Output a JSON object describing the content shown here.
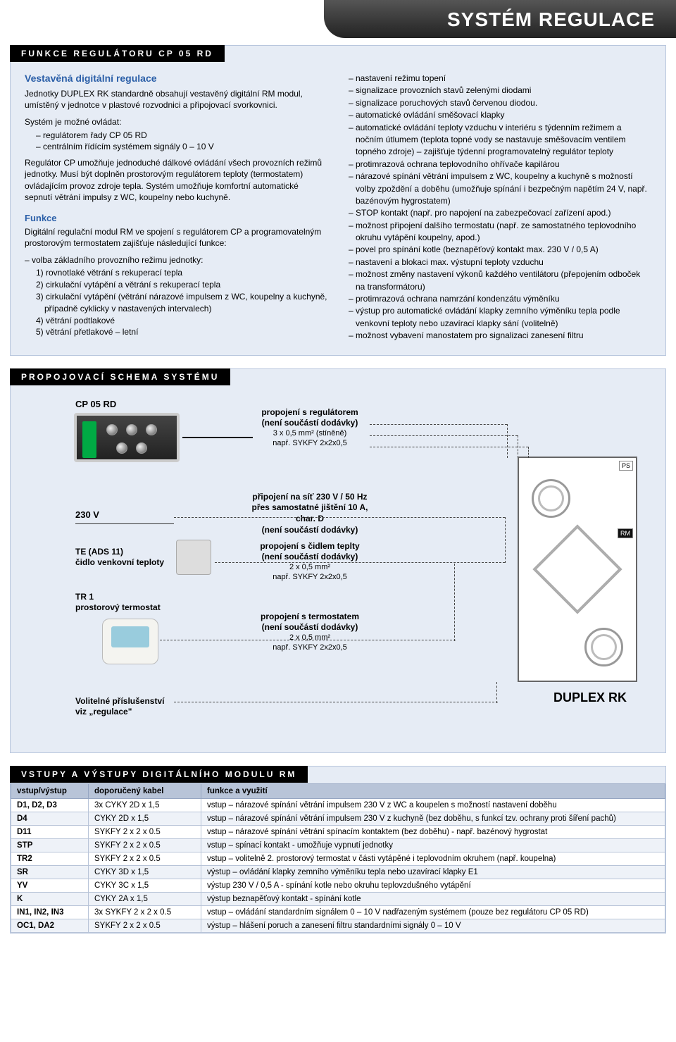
{
  "page_title": "SYSTÉM REGULACE",
  "section1": {
    "tag": "FUNKCE REGULÁTORU CP 05 RD",
    "heading": "Vestavěná digitální regulace",
    "intro": "Jednotky DUPLEX RK standardně obsahují vestavěný digitální RM modul, umístěný v jednotce v plastové rozvodnici a připojovací svorkovnici.",
    "control_intro": "Systém je možné ovládat:",
    "control_items": [
      "– regulátorem řady CP 05 RD",
      "– centrálním řídícím systémem signály 0 – 10 V"
    ],
    "para2": "Regulátor CP umožňuje jednoduché dálkové ovládání všech provozních režimů jednotky. Musí být doplněn prostorovým regulátorem teploty (termostatem) ovládajícím provoz zdroje tepla. Systém umožňuje komfortní automatické sepnutí větrání impulsy z WC, koupelny nebo kuchyně.",
    "funkce_head": "Funkce",
    "funkce_intro": "Digitální regulační modul RM ve spojení s regulátorem CP a programovatelným prostorovým termostatem zajišťuje následující funkce:",
    "mode_intro": "– volba základního provozního režimu jednotky:",
    "modes": [
      "1) rovnotlaké větrání s rekuperací tepla",
      "2) cirkulační vytápění a větrání s rekuperací tepla",
      "3) cirkulační vytápění (větrání nárazové impulsem z WC, koupelny a kuchyně, případně cyklicky v nastavených intervalech)",
      "4) větrání podtlakové",
      "5) větrání přetlakové – letní"
    ],
    "right_bullets": [
      "– nastavení režimu topení",
      "– signalizace provozních stavů zelenými diodami",
      "– signalizace poruchových stavů červenou diodou.",
      "– automatické ovládání směšovací klapky",
      "– automatické ovládání teploty vzduchu v interiéru s týdenním režimem a nočním útlumem (teplota topné vody se nastavuje směšovacím ventilem topného zdroje) – zajišťuje týdenní programovatelný regulátor teploty",
      "– protimrazová ochrana teplovodního ohřívače kapilárou",
      "– nárazové spínání větrání impulsem z WC, koupelny a kuchyně s možností volby zpoždění a doběhu (umožňuje spínání i bezpečným napětím 24 V, např. bazénovým hygrostatem)",
      "– STOP kontakt (např. pro napojení na zabezpečovací zařízení apod.)",
      "– možnost připojení dalšího termostatu (např. ze samostatného teplovodního okruhu vytápění koupelny, apod.)",
      "– povel pro spínání kotle (beznapěťový kontakt max. 230 V / 0,5 A)",
      "– nastavení a blokaci max. výstupní teploty vzduchu",
      "– možnost změny nastavení výkonů každého ventilátoru (přepojením odboček na transformátoru)",
      "– protimrazová ochrana namrzání kondenzátu výměníku",
      "– výstup pro automatické ovládání klapky zemního výměníku tepla podle venkovní teploty nebo uzavírací klapky sání (volitelně)",
      "– možnost vybavení manostatem pro signalizaci zanesení filtru"
    ]
  },
  "section2": {
    "tag": "PROPOJOVACÍ SCHEMA SYSTÉMU",
    "controller_label": "CP 05 RD",
    "conn_reg_1": "propojení s regulátorem",
    "conn_reg_2": "(není součástí dodávky)",
    "conn_reg_3": "3 x 0,5 mm² (stíněně)",
    "conn_reg_4": "např. SYKFY 2x2x0,5",
    "v230": "230 V",
    "conn_230_1": "připojení na síť 230 V / 50 Hz",
    "conn_230_2": "přes samostatné jištění 10 A, char. D",
    "conn_230_3": "(není součástí dodávky)",
    "te_label1": "TE (ADS 11)",
    "te_label2": "čidlo venkovní teploty",
    "conn_te_1": "propojení s čidlem teplty",
    "conn_te_2": "(není součástí dodávky)",
    "conn_te_3": "2 x 0,5 mm²",
    "conn_te_4": "např. SYKFY 2x2x0,5",
    "tr_label1": "TR 1",
    "tr_label2": "prostorový termostat",
    "conn_tr_1": "propojení s termostatem",
    "conn_tr_2": "(není součástí dodávky)",
    "conn_tr_3": "2 x 0,5 mm²",
    "conn_tr_4": "např. SYKFY 2x2x0,5",
    "opt_label1": "Volitelné příslušenství",
    "opt_label2": "viz „regulace\"",
    "unit_label": "DUPLEX RK",
    "badge_ps": "PS",
    "badge_rm": "RM"
  },
  "section3": {
    "tag": "VSTUPY A VÝSTUPY DIGITÁLNÍHO MODULU RM",
    "headers": [
      "vstup/výstup",
      "doporučený kabel",
      "funkce a využití"
    ],
    "rows": [
      [
        "D1, D2, D3",
        "3x CYKY 2D x 1,5",
        "vstup – nárazové spínání větrání impulsem 230 V z WC a koupelen s možností nastavení doběhu"
      ],
      [
        "D4",
        "CYKY 2D x 1,5",
        "vstup – nárazové spínání větrání impulsem 230 V z kuchyně (bez doběhu, s funkcí tzv. ochrany proti šíření pachů)"
      ],
      [
        "D11",
        "SYKFY 2 x 2 x 0.5",
        "vstup – nárazové spínání větrání spínacím kontaktem (bez doběhu) - např. bazénový hygrostat"
      ],
      [
        "STP",
        "SYKFY 2 x 2 x 0.5",
        "vstup – spínací kontakt - umožňuje vypnutí jednotky"
      ],
      [
        "TR2",
        "SYKFY 2 x 2 x 0.5",
        "vstup – volitelně 2. prostorový termostat v části vytápěné i teplovodním okruhem (např. koupelna)"
      ],
      [
        "SR",
        "CYKY 3D x 1,5",
        "výstup – ovládání klapky zemního výměníku tepla nebo uzavírací klapky E1"
      ],
      [
        "YV",
        "CYKY 3C x 1,5",
        "výstup 230 V / 0,5 A  - spínání kotle nebo okruhu teplovzdušného vytápění"
      ],
      [
        "K",
        "CYKY 2A x 1,5",
        "výstup beznapěťový kontakt - spínání kotle"
      ],
      [
        "IN1, IN2, IN3",
        "3x SYKFY 2 x 2 x 0.5",
        "vstup – ovládání standardním signálem 0 – 10 V nadřazeným systémem (pouze bez regulátoru CP 05 RD)"
      ],
      [
        "OC1, DA2",
        "SYKFY 2 x 2 x 0.5",
        "výstup – hlášení poruch a zanesení filtru standardními signály  0 – 10 V"
      ]
    ]
  }
}
